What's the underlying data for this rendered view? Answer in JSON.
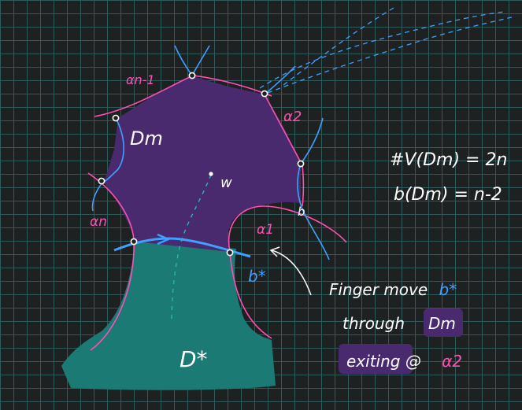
{
  "labels": {
    "alpha_n_minus_1": "αn-1",
    "alpha_2": "α2",
    "alpha_n": "αn",
    "alpha_1": "α1",
    "region_m": "Dm",
    "region_star": "D*",
    "point_w": "w",
    "b_star": "b*",
    "b": "b"
  },
  "formulas": {
    "vertices": "#V(Dm) = 2n",
    "b_count": "b(Dm) = n-2"
  },
  "note": {
    "line1_text": "Finger move",
    "line1_sym": "b*",
    "line2_text": "through",
    "line2_sym": "Dm",
    "line3_text": "exiting @",
    "line3_sym": "α2"
  },
  "colors": {
    "background": "#1e2121",
    "grid": "#2f5a5a",
    "region_m_fill": "#4a2a6e",
    "region_star_fill": "#1b7a74",
    "pink_arc": "#ff4fb4",
    "blue_arc": "#3ea0ff",
    "white": "#ffffff"
  }
}
